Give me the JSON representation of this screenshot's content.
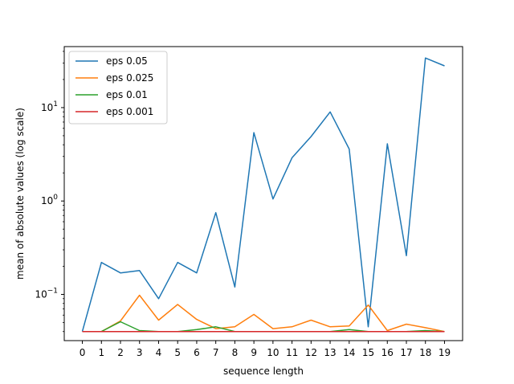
{
  "chart_data": {
    "type": "line",
    "xlabel": "sequence length",
    "ylabel": "mean of absolute values (log scale)",
    "yscale": "log",
    "xlim": [
      -0.95,
      19.95
    ],
    "ylim": [
      0.032,
      45
    ],
    "x": [
      0,
      1,
      2,
      3,
      4,
      5,
      6,
      7,
      8,
      9,
      10,
      11,
      12,
      13,
      14,
      15,
      16,
      17,
      18,
      19
    ],
    "x_ticks": [
      "0",
      "1",
      "2",
      "3",
      "4",
      "5",
      "6",
      "7",
      "8",
      "9",
      "10",
      "11",
      "12",
      "13",
      "14",
      "15",
      "16",
      "17",
      "18",
      "19"
    ],
    "y_ticks": [
      {
        "value": 0.1,
        "base": "10",
        "exp": "−1"
      },
      {
        "value": 1,
        "base": "10",
        "exp": "0"
      },
      {
        "value": 10,
        "base": "10",
        "exp": "1"
      }
    ],
    "grid": false,
    "legend_position": "top-left",
    "series": [
      {
        "name": "eps 0.05",
        "color": "#1f77b4",
        "values": [
          0.04,
          0.22,
          0.17,
          0.18,
          0.09,
          0.22,
          0.17,
          0.75,
          0.12,
          5.4,
          1.05,
          2.9,
          4.9,
          9.0,
          3.6,
          0.045,
          4.1,
          0.26,
          34,
          28
        ]
      },
      {
        "name": "eps 0.025",
        "color": "#ff7f0e",
        "values": [
          0.04,
          0.04,
          0.052,
          0.098,
          0.053,
          0.078,
          0.054,
          0.043,
          0.045,
          0.061,
          0.043,
          0.045,
          0.053,
          0.045,
          0.046,
          0.077,
          0.041,
          0.048,
          0.044,
          0.04
        ]
      },
      {
        "name": "eps 0.01",
        "color": "#2ca02c",
        "values": [
          0.04,
          0.04,
          0.051,
          0.041,
          0.04,
          0.04,
          0.042,
          0.045,
          0.04,
          0.04,
          0.04,
          0.04,
          0.04,
          0.04,
          0.042,
          0.04,
          0.04,
          0.04,
          0.041,
          0.04
        ]
      },
      {
        "name": "eps 0.001",
        "color": "#d62728",
        "values": [
          0.04,
          0.04,
          0.04,
          0.04,
          0.04,
          0.04,
          0.04,
          0.04,
          0.04,
          0.04,
          0.04,
          0.04,
          0.04,
          0.04,
          0.04,
          0.04,
          0.04,
          0.04,
          0.04,
          0.04
        ]
      }
    ]
  }
}
